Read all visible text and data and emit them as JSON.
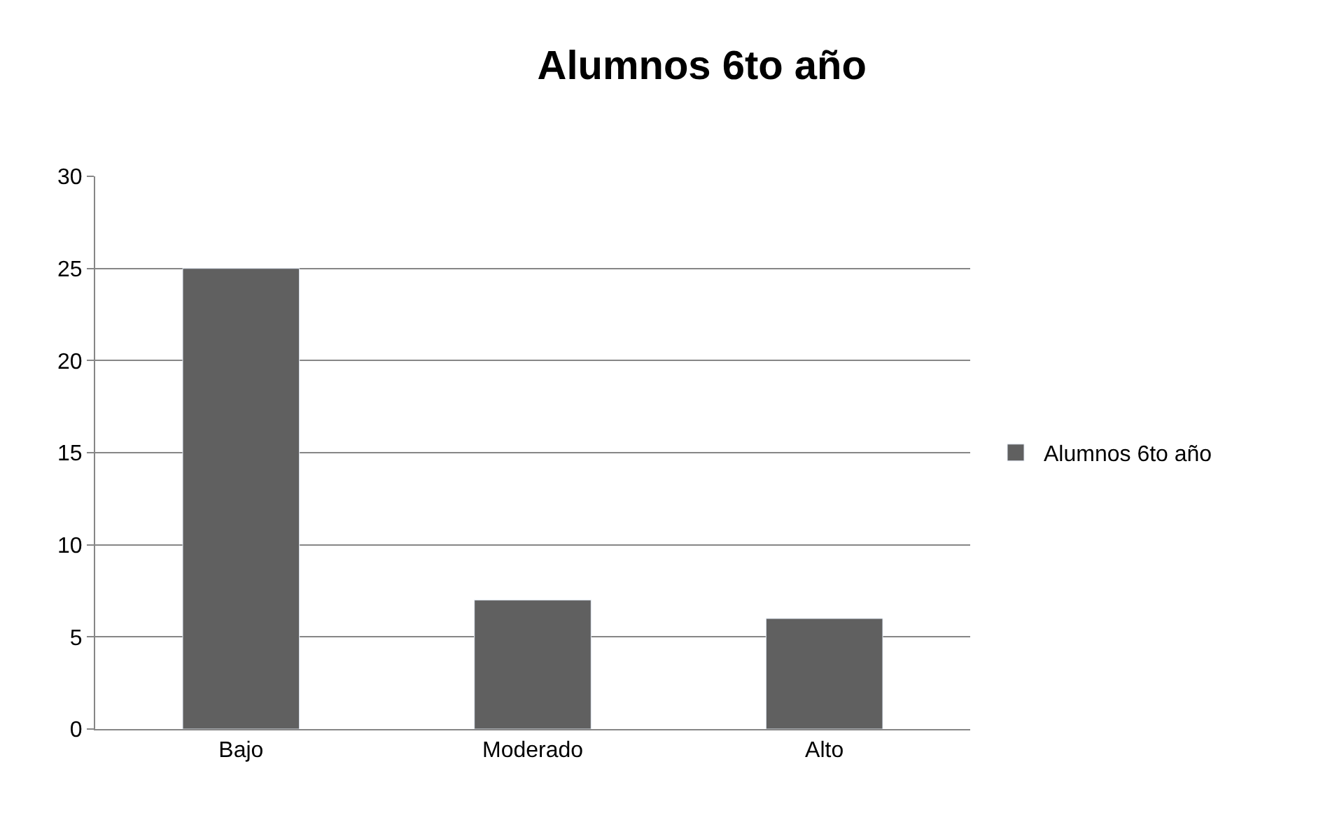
{
  "chart_data": {
    "type": "bar",
    "title": "Alumnos 6to año",
    "categories": [
      "Bajo",
      "Moderado",
      "Alto"
    ],
    "series": [
      {
        "name": "Alumnos 6to año",
        "color": "#606060",
        "values": [
          25,
          7,
          6
        ]
      }
    ],
    "ylim": [
      0,
      30
    ],
    "yticks": [
      0,
      5,
      10,
      15,
      20,
      25,
      30
    ],
    "grid": "y",
    "legend": "right"
  }
}
